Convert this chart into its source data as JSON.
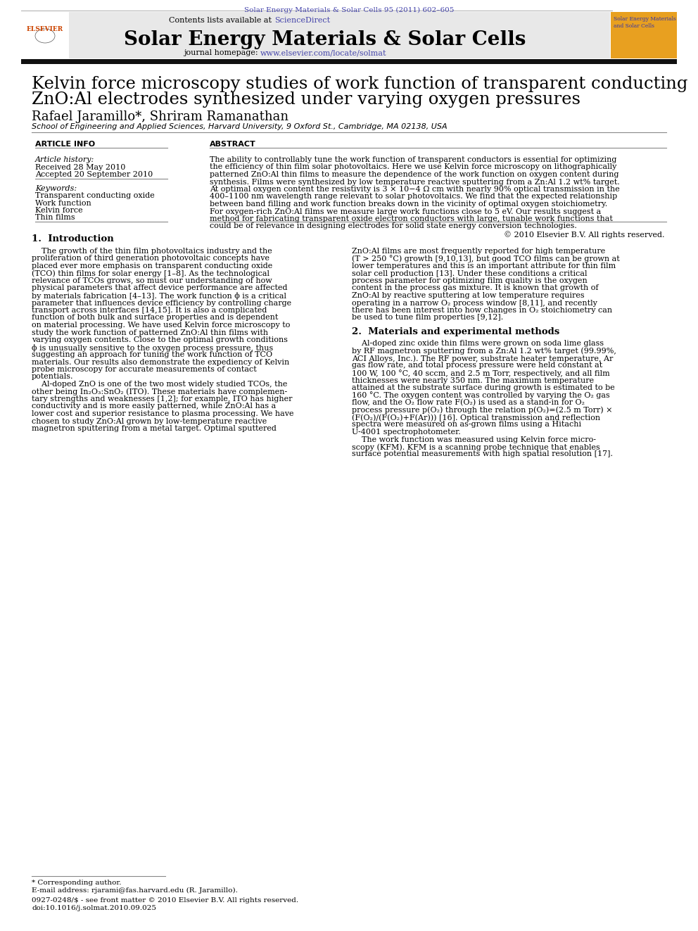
{
  "journal_ref": "Solar Energy Materials & Solar Cells 95 (2011) 602–605",
  "journal_ref_color": "#4444aa",
  "contents_text": "Contents lists available at ",
  "sciencedirect_text": "ScienceDirect",
  "sciencedirect_color": "#4444aa",
  "journal_title": "Solar Energy Materials & Solar Cells",
  "journal_homepage_text": "journal homepage: ",
  "journal_url": "www.elsevier.com/locate/solmat",
  "journal_url_color": "#4444aa",
  "header_bg": "#e8e8e8",
  "black_bar_color": "#111111",
  "paper_title_line1": "Kelvin force microscopy studies of work function of transparent conducting",
  "paper_title_line2": "ZnO:Al electrodes synthesized under varying oxygen pressures",
  "authors": "Rafael Jaramillo*, Shriram Ramanathan",
  "affiliation": "School of Engineering and Applied Sciences, Harvard University, 9 Oxford St., Cambridge, MA 02138, USA",
  "article_info_header": "ARTICLE INFO",
  "abstract_header": "ABSTRACT",
  "article_history_label": "Article history:",
  "received": "Received 28 May 2010",
  "accepted": "Accepted 20 September 2010",
  "keywords_label": "Keywords:",
  "keywords": [
    "Transparent conducting oxide",
    "Work function",
    "Kelvin force",
    "Thin films"
  ],
  "copyright_text": "© 2010 Elsevier B.V. All rights reserved.",
  "section1_title": "1.  Introduction",
  "section2_title": "2.  Materials and experimental methods",
  "footnote_star": "* Corresponding author.",
  "footnote_email": "E-mail address: rjarami@fas.harvard.edu (R. Jaramillo).",
  "footnote_issn": "0927-0248/$ - see front matter © 2010 Elsevier B.V. All rights reserved.",
  "footnote_doi": "doi:10.1016/j.solmat.2010.09.025",
  "bg_color": "#ffffff",
  "text_color": "#000000",
  "abstract_lines": [
    "The ability to controllably tune the work function of transparent conductors is essential for optimizing",
    "the efficiency of thin film solar photovoltaics. Here we use Kelvin force microscopy on lithographically",
    "patterned ZnO:Al thin films to measure the dependence of the work function on oxygen content during",
    "synthesis. Films were synthesized by low temperature reactive sputtering from a Zn:Al 1.2 wt% target.",
    "At optimal oxygen content the resistivity is 3 × 10−4 Ω cm with nearly 90% optical transmission in the",
    "400–1100 nm wavelength range relevant to solar photovoltaics. We find that the expected relationship",
    "between band filling and work function breaks down in the vicinity of optimal oxygen stoichiometry.",
    "For oxygen-rich ZnO:Al films we measure large work functions close to 5 eV. Our results suggest a",
    "method for fabricating transparent oxide electron conductors with large, tunable work functions that",
    "could be of relevance in designing electrodes for solid state energy conversion technologies."
  ],
  "col1_lines": [
    "    The growth of the thin film photovoltaics industry and the",
    "proliferation of third generation photovoltaic concepts have",
    "placed ever more emphasis on transparent conducting oxide",
    "(TCO) thin films for solar energy [1–8]. As the technological",
    "relevance of TCOs grows, so must our understanding of how",
    "physical parameters that affect device performance are affected",
    "by materials fabrication [4–13]. The work function ϕ is a critical",
    "parameter that influences device efficiency by controlling charge",
    "transport across interfaces [14,15]. It is also a complicated",
    "function of both bulk and surface properties and is dependent",
    "on material processing. We have used Kelvin force microscopy to",
    "study the work function of patterned ZnO:Al thin films with",
    "varying oxygen contents. Close to the optimal growth conditions",
    "ϕ is unusually sensitive to the oxygen process pressure, thus",
    "suggesting an approach for tuning the work function of TCO",
    "materials. Our results also demonstrate the expediency of Kelvin",
    "probe microscopy for accurate measurements of contact",
    "potentials.",
    "    Al-doped ZnO is one of the two most widely studied TCOs, the",
    "other being In₂O₃:SnO₂ (ITO). These materials have complemen-",
    "tary strengths and weaknesses [1,2]; for example, ITO has higher",
    "conductivity and is more easily patterned, while ZnO:Al has a",
    "lower cost and superior resistance to plasma processing. We have",
    "chosen to study ZnO:Al grown by low-temperature reactive",
    "magnetron sputtering from a metal target. Optimal sputtered"
  ],
  "col2_lines_s1": [
    "ZnO:Al films are most frequently reported for high temperature",
    "(T > 250 °C) growth [9,10,13], but good TCO films can be grown at",
    "lower temperatures and this is an important attribute for thin film",
    "solar cell production [13]. Under these conditions a critical",
    "process parameter for optimizing film quality is the oxygen",
    "content in the process gas mixture. It is known that growth of",
    "ZnO:Al by reactive sputtering at low temperature requires",
    "operating in a narrow O₂ process window [8,11], and recently",
    "there has been interest into how changes in O₂ stoichiometry can",
    "be used to tune film properties [9,12]."
  ],
  "col2_lines_s2": [
    "    Al-doped zinc oxide thin films were grown on soda lime glass",
    "by RF magnetron sputtering from a Zn:Al 1.2 wt% target (99.99%,",
    "ACI Alloys, Inc.). The RF power, substrate heater temperature, Ar",
    "gas flow rate, and total process pressure were held constant at",
    "100 W, 100 °C, 40 sccm, and 2.5 m Torr, respectively, and all film",
    "thicknesses were nearly 350 nm. The maximum temperature",
    "attained at the substrate surface during growth is estimated to be",
    "160 °C. The oxygen content was controlled by varying the O₂ gas",
    "flow, and the O₂ flow rate F(O₂) is used as a stand-in for O₂",
    "process pressure p(O₂) through the relation p(O₂)=(2.5 m Torr) ×",
    "(F(O₂)/(F(O₂)+F(Ar))) [16]. Optical transmission and reflection",
    "spectra were measured on as-grown films using a Hitachi",
    "U-4001 spectrophotometer.",
    "    The work function was measured using Kelvin force micro-",
    "scopy (KFM). KFM is a scanning probe technique that enables",
    "surface potential measurements with high spatial resolution [17]."
  ]
}
